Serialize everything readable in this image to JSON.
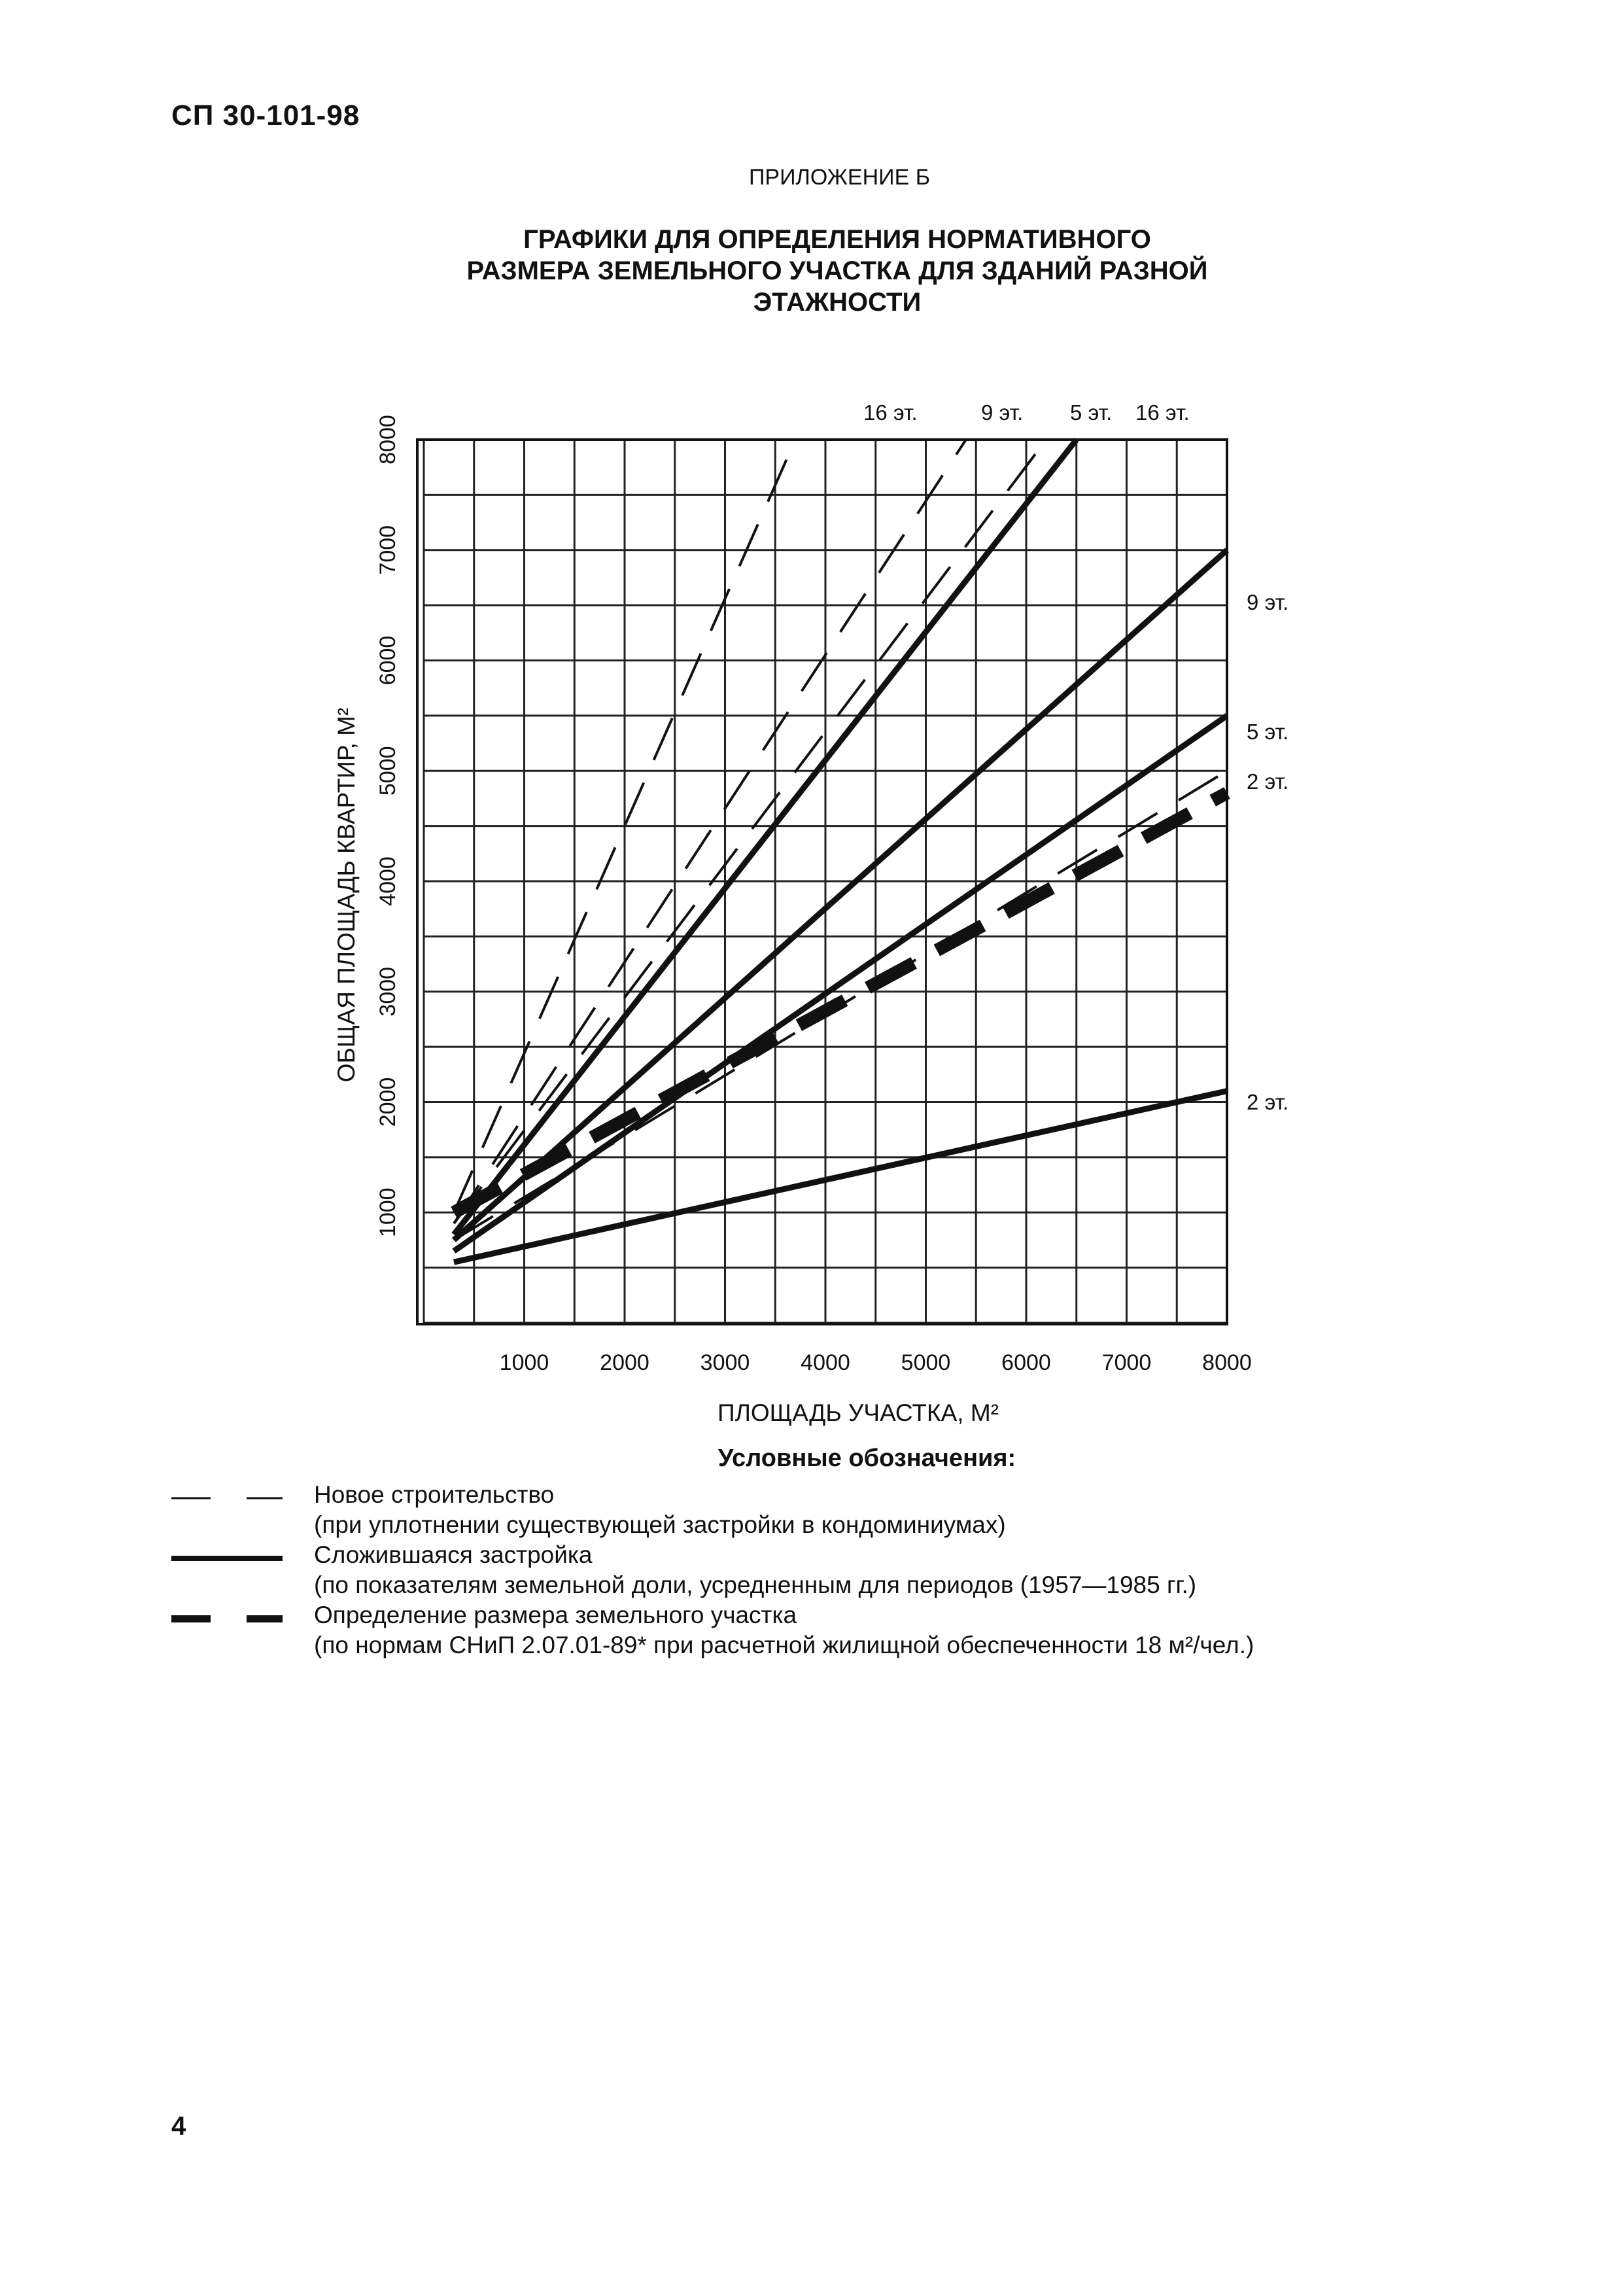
{
  "header": {
    "doc_code": "СП 30-101-98",
    "appendix": "ПРИЛОЖЕНИЕ Б",
    "title_lines": [
      "ГРАФИКИ ДЛЯ ОПРЕДЕЛЕНИЯ НОРМАТИВНОГО",
      "РАЗМЕРА ЗЕМЕЛЬНОГО УЧАСТКА ДЛЯ ЗДАНИЙ РАЗНОЙ",
      "ЭТАЖНОСТИ"
    ]
  },
  "chart_data": {
    "type": "line",
    "xlabel": "ПЛОЩАДЬ УЧАСТКА, М²",
    "ylabel": "ОБЩАЯ ПЛОЩАДЬ КВАРТИР, М²",
    "xlim": [
      0,
      8000
    ],
    "ylim": [
      0,
      8000
    ],
    "x_ticks": [
      "1000",
      "2000",
      "3000",
      "4000",
      "5000",
      "6000",
      "7000",
      "8000"
    ],
    "y_ticks": [
      "1000",
      "2000",
      "3000",
      "4000",
      "5000",
      "6000",
      "7000",
      "8000"
    ],
    "grid": true,
    "series": [
      {
        "name": "16 эт.",
        "style": "dashed",
        "points": [
          [
            300,
            1000
          ],
          [
            3700,
            8000
          ]
        ]
      },
      {
        "name": "9 эт.",
        "style": "dashed",
        "points": [
          [
            300,
            900
          ],
          [
            5400,
            8000
          ]
        ]
      },
      {
        "name": "5 эт.",
        "style": "dashed",
        "points": [
          [
            300,
            900
          ],
          [
            6200,
            8000
          ]
        ]
      },
      {
        "name": "2 эт.",
        "style": "dashed",
        "points": [
          [
            300,
            750
          ],
          [
            8000,
            5000
          ]
        ]
      },
      {
        "name": "16 эт.",
        "style": "solid",
        "points": [
          [
            300,
            800
          ],
          [
            6500,
            8000
          ]
        ]
      },
      {
        "name": "9 эт.",
        "style": "solid",
        "points": [
          [
            300,
            750
          ],
          [
            8000,
            7000
          ]
        ]
      },
      {
        "name": "5 эт.",
        "style": "solid",
        "points": [
          [
            300,
            650
          ],
          [
            8000,
            5500
          ]
        ]
      },
      {
        "name": "2 эт.",
        "style": "solid",
        "points": [
          [
            300,
            550
          ],
          [
            8000,
            2100
          ]
        ]
      },
      {
        "name": "",
        "style": "bold-dashed",
        "points": [
          [
            300,
            1000
          ],
          [
            8000,
            4800
          ]
        ]
      }
    ],
    "top_labels": [
      "16 эт.",
      "9 эт.",
      "5 эт.",
      "16 эт."
    ],
    "right_labels": [
      "9 эт.",
      "5 эт.",
      "2 эт.",
      "2 эт."
    ]
  },
  "legend": {
    "heading": "Условные обозначения:",
    "items": [
      {
        "style": "dashed",
        "lines": [
          "Новое строительство",
          "(при уплотнении существующей застройки в кондоминиумах)"
        ]
      },
      {
        "style": "solid",
        "lines": [
          "Сложившаяся застройка",
          "(по показателям земельной доли, усредненным для периодов (1957—1985 гг.)"
        ]
      },
      {
        "style": "bold-dashed",
        "lines": [
          "Определение размера земельного участка",
          "(по нормам СНиП 2.07.01-89* при расчетной жилищной обеспеченности 18 м²/чел.)"
        ]
      }
    ]
  },
  "footer": {
    "page_number": "4"
  }
}
